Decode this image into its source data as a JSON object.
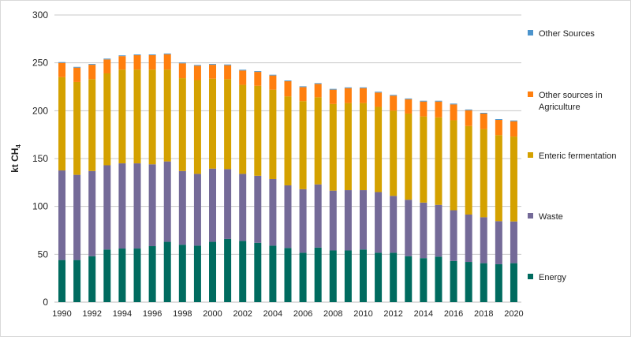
{
  "chart_data": {
    "type": "bar",
    "stacked": true,
    "title": "",
    "xlabel": "",
    "ylabel": "kt CH",
    "ylabel_subscript": "4",
    "ylim": [
      0,
      300
    ],
    "yticks": [
      0,
      50,
      100,
      150,
      200,
      250,
      300
    ],
    "grid": true,
    "legend_position": "right",
    "categories": [
      1990,
      1991,
      1992,
      1993,
      1994,
      1995,
      1996,
      1997,
      1998,
      1999,
      2000,
      2001,
      2002,
      2003,
      2004,
      2005,
      2006,
      2007,
      2008,
      2009,
      2010,
      2011,
      2012,
      2013,
      2014,
      2015,
      2016,
      2017,
      2018,
      2019,
      2020
    ],
    "series": [
      {
        "name": "Energy",
        "color": "#006B5F",
        "values": [
          44,
          44,
          48,
          55,
          56,
          56,
          58.5,
          63,
          60,
          59,
          63,
          66,
          64,
          62,
          59,
          56.6,
          51.6,
          57,
          54,
          54,
          55,
          51.6,
          51.6,
          48,
          46,
          47.5,
          43,
          42,
          40.7,
          39.6,
          40.7
        ]
      },
      {
        "name": "Waste",
        "color": "#746A98",
        "values": [
          93.6,
          89,
          89,
          88,
          89,
          89,
          85.5,
          84,
          77,
          75,
          76.5,
          73,
          70,
          70,
          69.6,
          65.4,
          66.4,
          66,
          62.5,
          63,
          62,
          63.4,
          59.4,
          59,
          58,
          54.1,
          53,
          49.5,
          48,
          45,
          43.6
        ]
      },
      {
        "name": "Enteric fermentation",
        "color": "#D4A100",
        "values": [
          97.4,
          97,
          96,
          96,
          98,
          98,
          99,
          96,
          97,
          98,
          94,
          94,
          93,
          94,
          93.4,
          93,
          92,
          91,
          90.5,
          91,
          91,
          89,
          89,
          90,
          90,
          91.4,
          94,
          92.5,
          92.1,
          89.9,
          88.7
        ]
      },
      {
        "name": "Other sources in Agriculture",
        "color": "#FF7F0F",
        "values": [
          15,
          15,
          15,
          14.6,
          14,
          15,
          15,
          16,
          15.5,
          15,
          14.5,
          14.5,
          15,
          14.6,
          14.8,
          15.8,
          14.7,
          14,
          15,
          15.6,
          15.6,
          15,
          15.7,
          15,
          15.6,
          16.6,
          16.6,
          16.5,
          16.2,
          15.9,
          16
        ]
      },
      {
        "name": "Other Sources",
        "color": "#4C94CC",
        "values": [
          0.8,
          0.8,
          0.8,
          0.8,
          0.8,
          0.8,
          0.8,
          0.8,
          0.8,
          0.8,
          0.8,
          0.8,
          0.8,
          0.8,
          0.8,
          0.8,
          0.8,
          0.8,
          0.8,
          0.8,
          0.8,
          0.8,
          0.8,
          0.8,
          0.8,
          0.8,
          0.8,
          0.8,
          0.8,
          0.8,
          0.8
        ]
      }
    ],
    "legend_order": [
      "Other Sources",
      "Other sources in Agriculture",
      "Enteric fermentation",
      "Waste",
      "Energy"
    ]
  }
}
